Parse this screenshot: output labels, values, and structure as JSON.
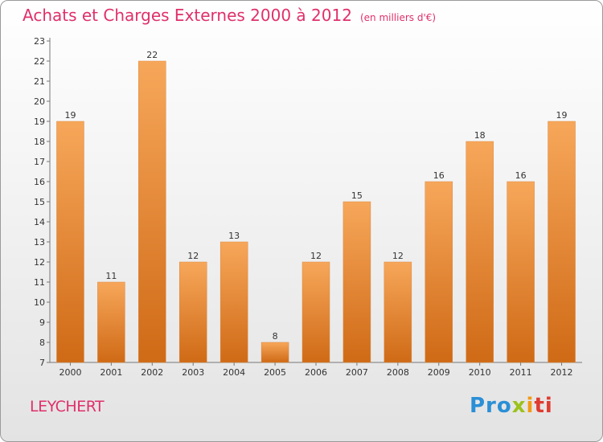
{
  "title": "Achats et Charges Externes 2000 à 2012",
  "subtitle": "(en milliers d'€)",
  "commune": "LEYCHERT",
  "logo": {
    "p1": "Pro",
    "p2": "x",
    "p3": "i",
    "p4": "ti"
  },
  "colors": {
    "bar_light": "#f7a75a",
    "bar_dark": "#cf6a16",
    "title": "#e0306a"
  },
  "chart_data": {
    "type": "bar",
    "title": "Achats et Charges Externes 2000 à 2012",
    "subtitle": "(en milliers d'€)",
    "categories": [
      "2000",
      "2001",
      "2002",
      "2003",
      "2004",
      "2005",
      "2006",
      "2007",
      "2008",
      "2009",
      "2010",
      "2011",
      "2012"
    ],
    "values": [
      19,
      11,
      22,
      12,
      13,
      8,
      12,
      15,
      12,
      16,
      18,
      16,
      19
    ],
    "ylim": [
      7,
      23
    ],
    "yticks": [
      7,
      8,
      9,
      10,
      11,
      12,
      13,
      14,
      15,
      16,
      17,
      18,
      19,
      20,
      21,
      22,
      23
    ],
    "grid": false,
    "data_labels": true
  }
}
